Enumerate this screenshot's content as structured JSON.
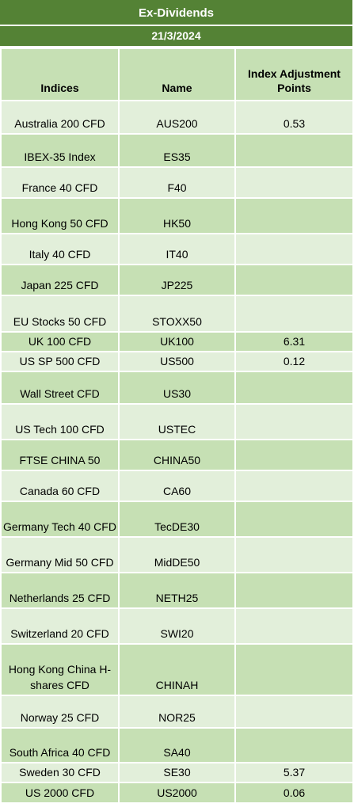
{
  "header": {
    "title": "Ex-Dividends",
    "date": "21/3/2024"
  },
  "columns": [
    "Indices",
    "Name",
    "Index Adjustment Points"
  ],
  "rows": [
    {
      "index": "Australia 200 CFD",
      "name": "AUS200",
      "points": "0.53"
    },
    {
      "index": "IBEX-35 Index",
      "name": "ES35",
      "points": ""
    },
    {
      "index": "France 40 CFD",
      "name": "F40",
      "points": ""
    },
    {
      "index": "Hong Kong 50 CFD",
      "name": "HK50",
      "points": ""
    },
    {
      "index": "Italy 40 CFD",
      "name": "IT40",
      "points": ""
    },
    {
      "index": "Japan 225 CFD",
      "name": "JP225",
      "points": ""
    },
    {
      "index": "EU Stocks 50 CFD",
      "name": "STOXX50",
      "points": ""
    },
    {
      "index": "UK 100 CFD",
      "name": "UK100",
      "points": "6.31"
    },
    {
      "index": "US SP 500 CFD",
      "name": "US500",
      "points": "0.12"
    },
    {
      "index": "Wall Street CFD",
      "name": "US30",
      "points": ""
    },
    {
      "index": "US Tech 100 CFD",
      "name": "USTEC",
      "points": ""
    },
    {
      "index": "FTSE CHINA 50",
      "name": "CHINA50",
      "points": ""
    },
    {
      "index": "Canada 60 CFD",
      "name": "CA60",
      "points": ""
    },
    {
      "index": "Germany Tech 40 CFD",
      "name": "TecDE30",
      "points": ""
    },
    {
      "index": "Germany Mid 50 CFD",
      "name": "MidDE50",
      "points": ""
    },
    {
      "index": "Netherlands 25 CFD",
      "name": "NETH25",
      "points": ""
    },
    {
      "index": "Switzerland 20 CFD",
      "name": "SWI20",
      "points": ""
    },
    {
      "index": "Hong Kong China H-shares CFD",
      "name": "CHINAH",
      "points": ""
    },
    {
      "index": "Norway 25 CFD",
      "name": "NOR25",
      "points": ""
    },
    {
      "index": "South Africa 40 CFD",
      "name": "SA40",
      "points": ""
    },
    {
      "index": "Sweden 30 CFD",
      "name": "SE30",
      "points": "5.37"
    },
    {
      "index": "US 2000 CFD",
      "name": "US2000",
      "points": "0.06"
    }
  ]
}
